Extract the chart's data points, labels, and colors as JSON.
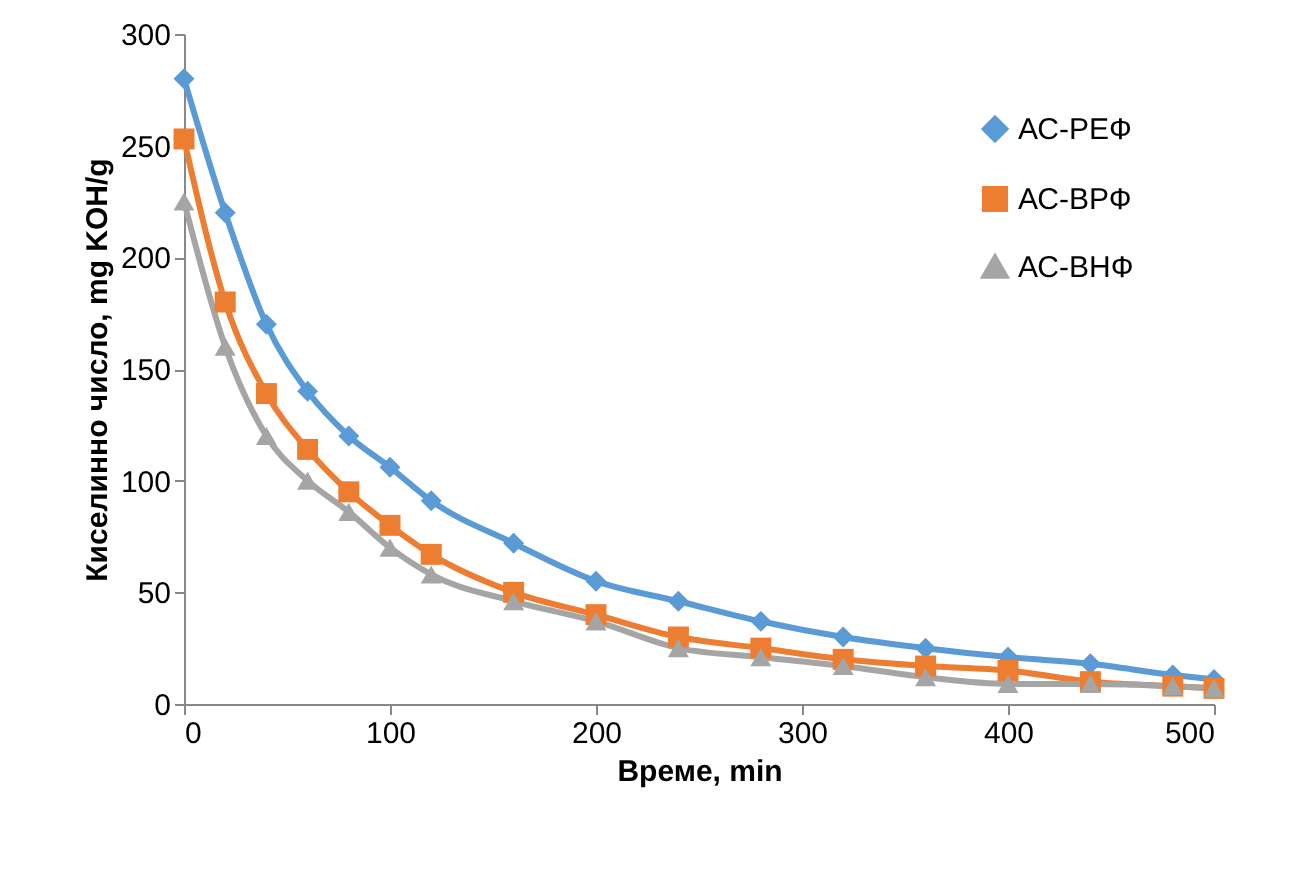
{
  "chart_data": {
    "type": "line",
    "xlabel": "Време, min",
    "ylabel": "Киселинно число, mg KOH/g",
    "x": [
      0,
      20,
      40,
      60,
      80,
      100,
      120,
      160,
      200,
      240,
      280,
      320,
      360,
      400,
      440,
      480,
      500
    ],
    "series": [
      {
        "name": "АС-РЕФ",
        "color": "#5b9bd5",
        "marker": "diamond",
        "values": [
          280,
          220,
          170,
          140,
          120,
          106,
          91,
          72,
          55,
          46,
          37,
          30,
          25,
          21,
          18,
          13,
          11
        ]
      },
      {
        "name": "АС-ВРФ",
        "color": "#ed7d31",
        "marker": "square",
        "values": [
          253,
          180,
          139,
          114,
          95,
          80,
          67,
          50,
          40,
          30,
          25,
          20,
          17,
          15,
          10,
          8,
          7
        ]
      },
      {
        "name": "АС-ВНФ",
        "color": "#a5a5a5",
        "marker": "triangle",
        "values": [
          225,
          160,
          120,
          100,
          86,
          70,
          58,
          46,
          37,
          25,
          21,
          17,
          12,
          9,
          9,
          8,
          7
        ]
      }
    ],
    "xlim": [
      0,
      500
    ],
    "xticks": [
      0,
      100,
      200,
      300,
      400,
      500
    ],
    "ylim": [
      0,
      300
    ],
    "yticks": [
      0,
      50,
      100,
      150,
      200,
      250,
      300
    ],
    "grid": false,
    "legend": "top right",
    "line_style": "solid"
  }
}
